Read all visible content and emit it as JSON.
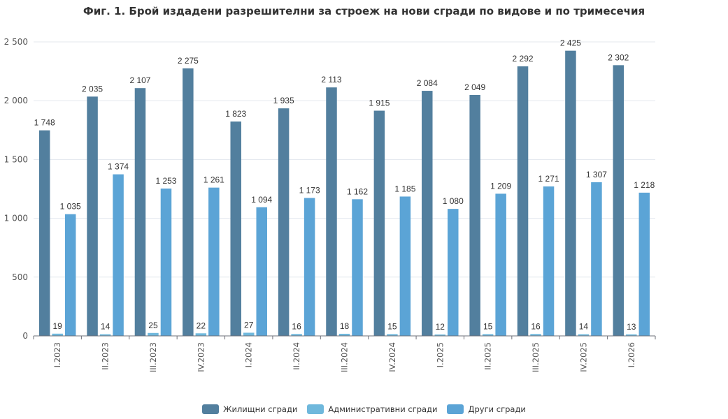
{
  "chart_data": {
    "type": "bar",
    "title": "Фиг. 1. Брой издадени разрешителни за строеж на нови сгради по видове и по тримесечия",
    "categories": [
      "I.2023",
      "II.2023",
      "III.2023",
      "IV.2023",
      "I.2024",
      "II.2024",
      "III.2024",
      "IV.2024",
      "I.2025",
      "II.2025",
      "III.2025",
      "IV.2025",
      "I.2026"
    ],
    "series": [
      {
        "name": "Жилищни сгради",
        "color": "#527f9e",
        "values": [
          1748,
          2035,
          2107,
          2275,
          1823,
          1935,
          2113,
          1915,
          2084,
          2049,
          2292,
          2425,
          2302
        ],
        "labels": [
          "1 748",
          "2 035",
          "2 107",
          "2 275",
          "1 823",
          "1 935",
          "2 113",
          "1 915",
          "2 084",
          "2 049",
          "2 292",
          "2 425",
          "2 302"
        ]
      },
      {
        "name": "Административни сгради",
        "color": "#6fb8dc",
        "values": [
          19,
          14,
          25,
          22,
          27,
          16,
          18,
          15,
          12,
          15,
          16,
          14,
          13
        ],
        "labels": [
          "19",
          "14",
          "25",
          "22",
          "27",
          "16",
          "18",
          "15",
          "12",
          "15",
          "16",
          "14",
          "13"
        ]
      },
      {
        "name": "Други сгради",
        "color": "#5ba4d6",
        "values": [
          1035,
          1374,
          1253,
          1261,
          1094,
          1173,
          1162,
          1185,
          1080,
          1209,
          1271,
          1307,
          1218
        ],
        "labels": [
          "1 035",
          "1 374",
          "1 253",
          "1 261",
          "1 094",
          "1 173",
          "1 162",
          "1 185",
          "1 080",
          "1 209",
          "1 271",
          "1 307",
          "1 218"
        ]
      }
    ],
    "ylim": [
      0,
      2500
    ],
    "yticks": [
      0,
      500,
      1000,
      1500,
      2000,
      2500
    ],
    "ytick_labels": [
      "0",
      "500",
      "1 000",
      "1 500",
      "2 000",
      "2 500"
    ],
    "grid": true,
    "legend_position": "bottom"
  }
}
